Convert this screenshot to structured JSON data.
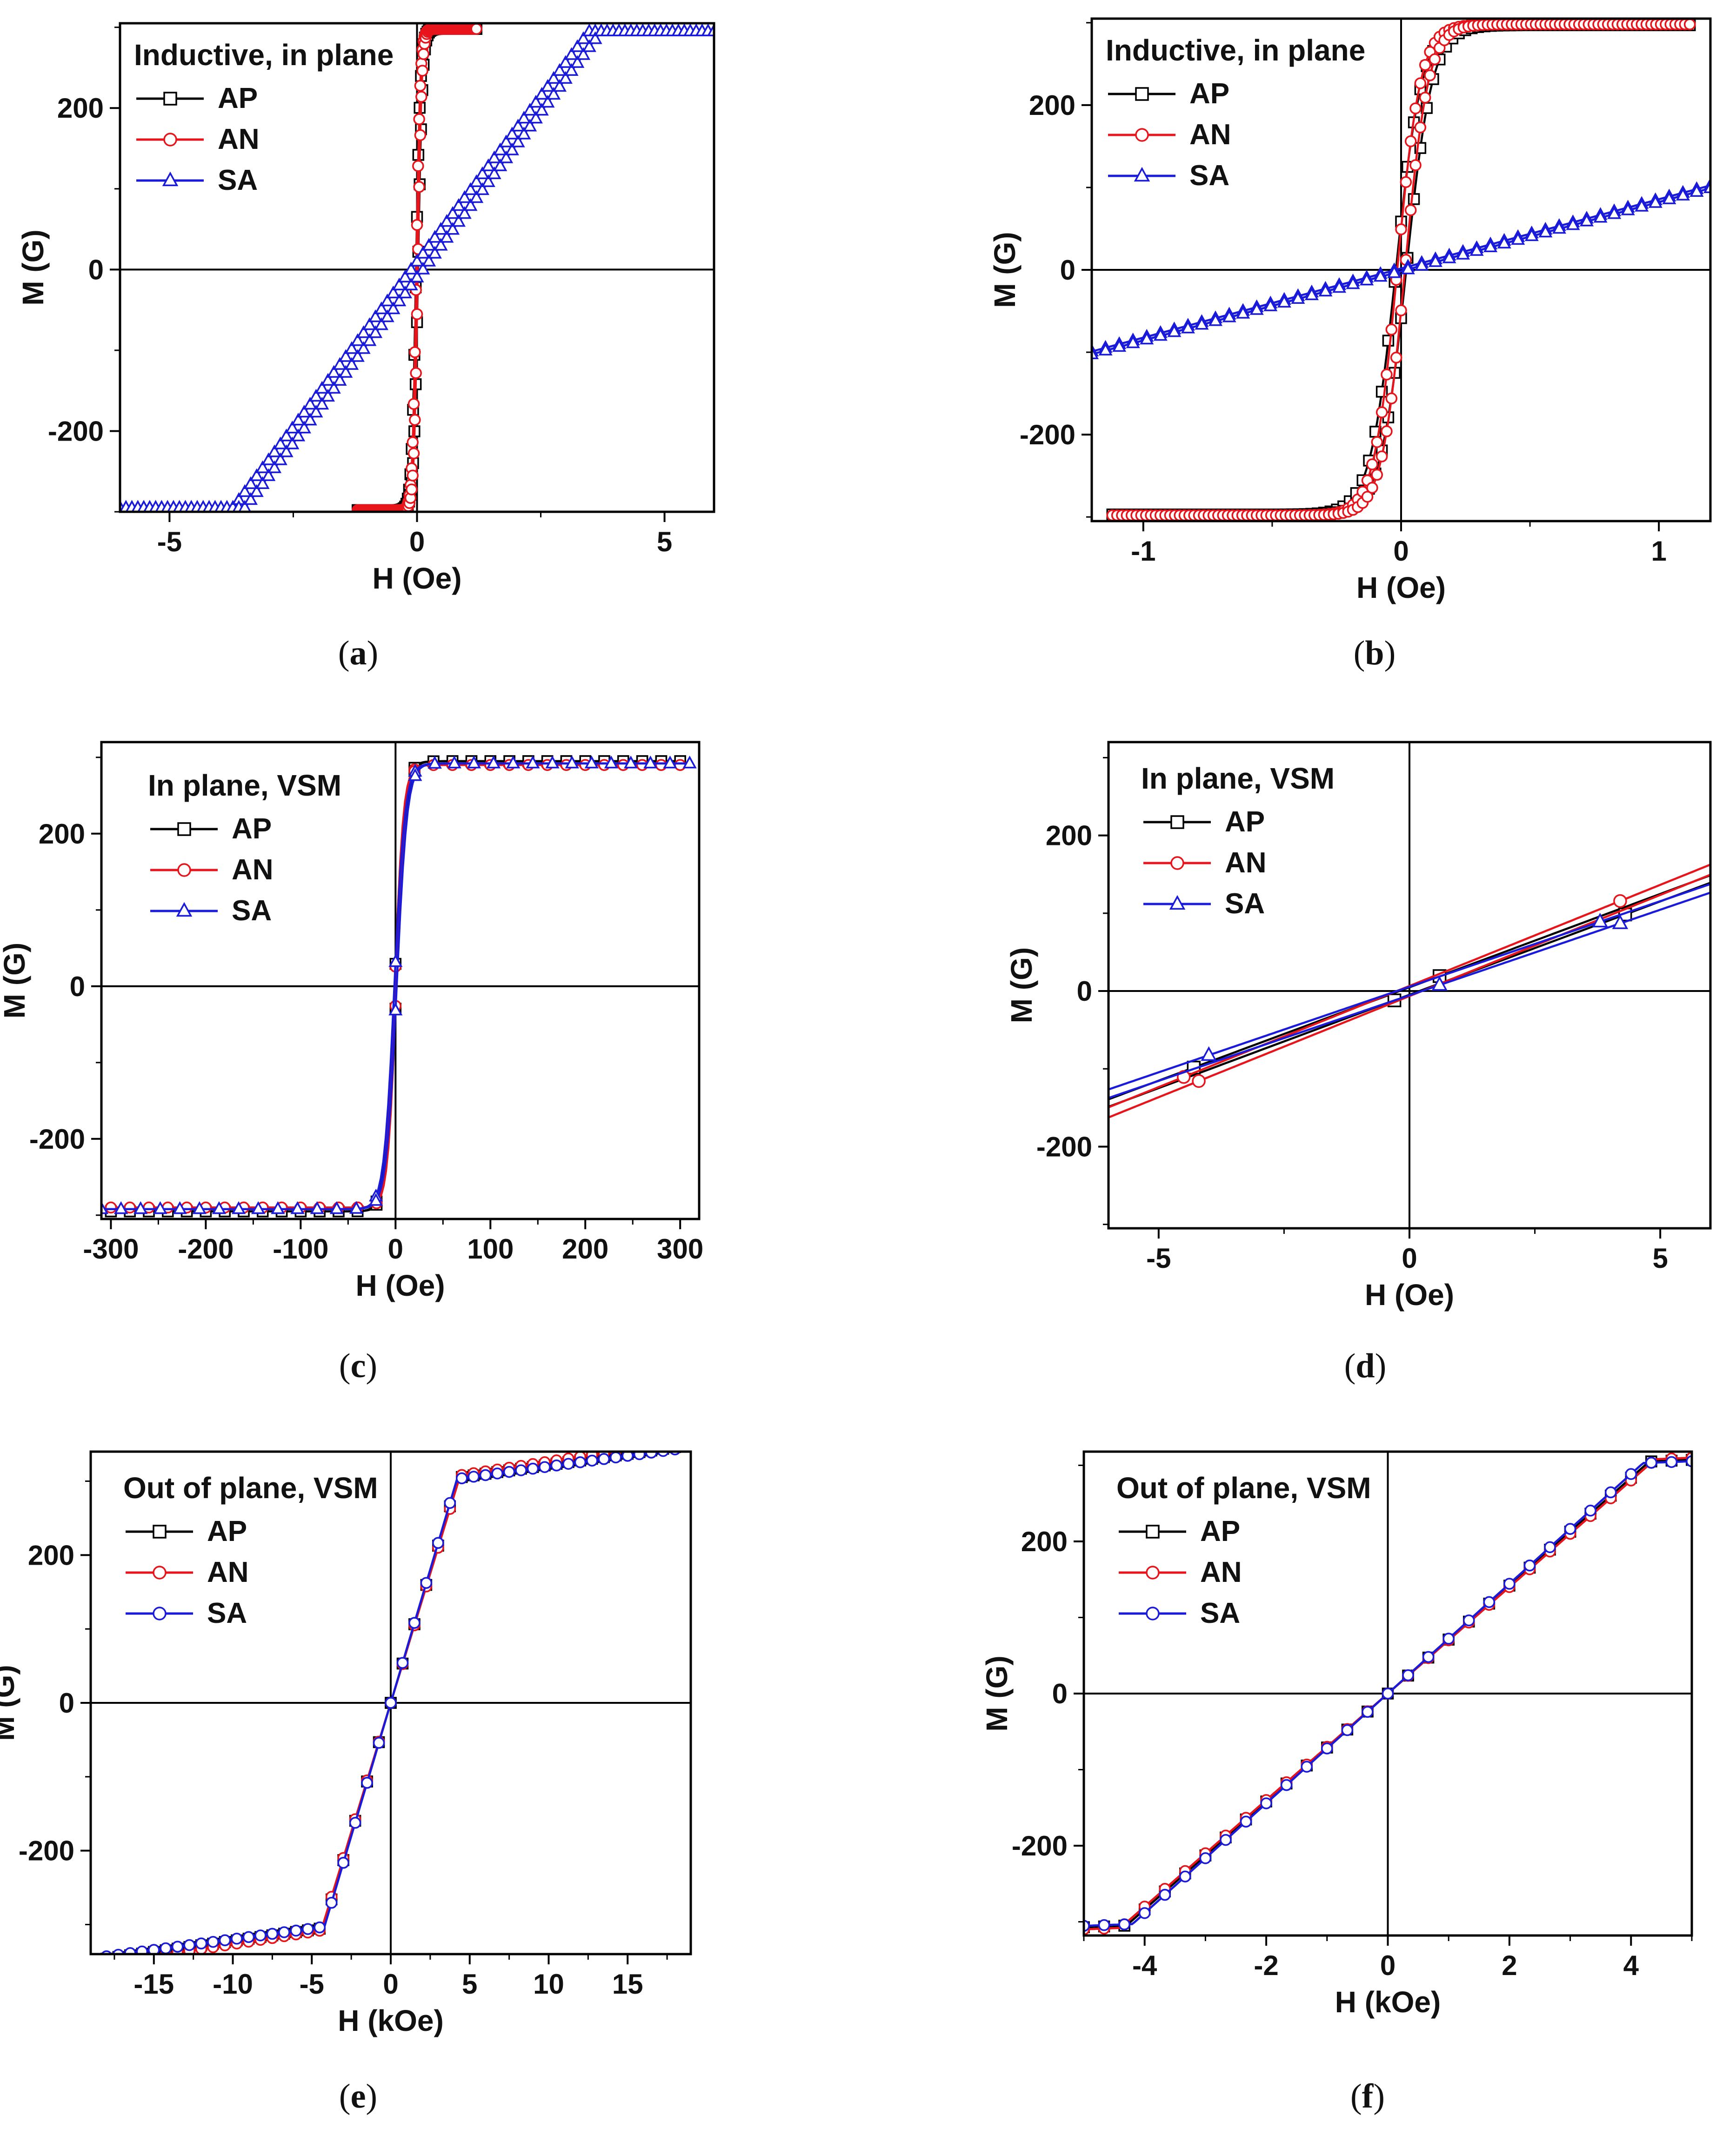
{
  "figure": {
    "colors": {
      "AP": "#000000",
      "AN": "#e8141b",
      "SA": "#1a1adb"
    },
    "icons": {
      "AP": "square-marker-icon",
      "AN": "circle-marker-icon",
      "SA": "triangle-marker-icon"
    }
  },
  "chart_data": [
    {
      "id": "a",
      "type": "line",
      "caption_label": "a",
      "title": "Inductive, in plane",
      "xlabel": "H (Oe)",
      "ylabel": "M (G)",
      "xlim": [
        -6,
        6
      ],
      "ylim": [
        -300,
        305
      ],
      "xticks": [
        -5,
        0,
        5
      ],
      "yticks": [
        -200,
        0,
        200
      ],
      "legend": [
        "AP",
        "AN",
        "SA"
      ],
      "legend_position": "top-left",
      "series": [
        {
          "name": "AP",
          "marker": "square",
          "model": "tanh",
          "Ms": 298,
          "a": 0.09,
          "hc": 0.02,
          "xmax": 1.2,
          "n": 90
        },
        {
          "name": "AN",
          "marker": "circle",
          "model": "tanh",
          "Ms": 298,
          "a": 0.08,
          "hc": 0.015,
          "xmax": 1.2,
          "n": 110
        },
        {
          "name": "SA",
          "marker": "triangle",
          "model": "linear-sat",
          "Ms": 295,
          "k": 82,
          "hc": 0.12,
          "xmax": 6,
          "n": 100
        }
      ]
    },
    {
      "id": "b",
      "type": "line",
      "caption_label": "b",
      "title": "Inductive, in plane",
      "xlabel": "H (Oe)",
      "ylabel": "M (G)",
      "xlim": [
        -1.2,
        1.2
      ],
      "ylim": [
        -305,
        305
      ],
      "xticks": [
        -1,
        0,
        1
      ],
      "yticks": [
        -200,
        0,
        200
      ],
      "legend": [
        "AP",
        "AN",
        "SA"
      ],
      "legend_position": "top-left",
      "series": [
        {
          "name": "AP",
          "marker": "square",
          "model": "tanh",
          "Ms": 297,
          "a": 0.1,
          "hc": 0.02,
          "xmax": 1.12,
          "n": 90
        },
        {
          "name": "AN",
          "marker": "circle",
          "model": "tanh",
          "Ms": 298,
          "a": 0.09,
          "hc": 0.015,
          "xmax": 1.12,
          "n": 120
        },
        {
          "name": "SA",
          "marker": "triangle",
          "model": "linear",
          "k": 84,
          "hc": 0.02,
          "xmax": 1.2,
          "n": 45
        }
      ]
    },
    {
      "id": "c",
      "type": "line",
      "caption_label": "c",
      "title": "In plane, VSM",
      "xlabel": "H (Oe)",
      "ylabel": "M (G)",
      "xlim": [
        -310,
        320
      ],
      "ylim": [
        -305,
        320
      ],
      "xticks": [
        -300,
        -200,
        -100,
        0,
        100,
        200,
        300
      ],
      "yticks": [
        -200,
        0,
        200
      ],
      "legend": [
        "AP",
        "AN",
        "SA"
      ],
      "legend_position": "top-left",
      "series": [
        {
          "name": "AP",
          "marker": "square",
          "model": "tanh",
          "Ms": 295,
          "a": 10,
          "hc": 1,
          "xmax": 300,
          "n": 30
        },
        {
          "name": "AN",
          "marker": "circle",
          "model": "tanh",
          "Ms": 290,
          "a": 9,
          "hc": 0.8,
          "xmax": 300,
          "n": 30
        },
        {
          "name": "SA",
          "marker": "triangle",
          "model": "tanh",
          "Ms": 292,
          "a": 11,
          "hc": 1.2,
          "xmax": 310,
          "n": 30
        }
      ]
    },
    {
      "id": "d",
      "type": "line",
      "caption_label": "d",
      "title": "In plane, VSM",
      "xlabel": "H (Oe)",
      "ylabel": "M (G)",
      "xlim": [
        -6,
        6
      ],
      "ylim": [
        -305,
        320
      ],
      "xticks": [
        -5,
        0,
        5
      ],
      "yticks": [
        -200,
        0,
        200
      ],
      "legend": [
        "AP",
        "AN",
        "SA"
      ],
      "legend_position": "top-left",
      "series": [
        {
          "name": "AP",
          "marker": "square",
          "model": "linear",
          "k": 24,
          "hc": 0.2,
          "xmax": 6,
          "markers_at": [
            -4.3,
            -0.3,
            0.6,
            4.3
          ]
        },
        {
          "name": "AN",
          "marker": "circle",
          "model": "linear",
          "k": 26,
          "hc": 0.25,
          "xmax": 6,
          "markers_at": [
            -4.5,
            -4.2,
            4.2
          ]
        },
        {
          "name": "SA",
          "marker": "triangle",
          "model": "linear",
          "k": 22,
          "hc": 0.25,
          "xmax": 6,
          "markers_at": [
            -4.0,
            0.6,
            3.8,
            4.2
          ]
        }
      ]
    },
    {
      "id": "e",
      "type": "line",
      "caption_label": "e",
      "title": "Out of plane, VSM",
      "xlabel": "H (kOe)",
      "ylabel": "M (G)",
      "xlim": [
        -19,
        19
      ],
      "ylim": [
        -340,
        340
      ],
      "xticks": [
        -15,
        -10,
        -5,
        0,
        5,
        10,
        15
      ],
      "yticks": [
        -200,
        0,
        200
      ],
      "legend": [
        "AP",
        "AN",
        "SA"
      ],
      "legend_position": "top-left",
      "series": [
        {
          "name": "AP",
          "marker": "square",
          "model": "knee",
          "Ms": 305,
          "hs": 4.3,
          "slope": 3,
          "xmax": 18,
          "n": 48
        },
        {
          "name": "AN",
          "marker": "circle",
          "model": "knee",
          "Ms": 308,
          "hs": 4.4,
          "slope": 3.3,
          "xmax": 18,
          "n": 48
        },
        {
          "name": "SA",
          "marker": "circle",
          "model": "knee",
          "Ms": 303,
          "hs": 4.2,
          "slope": 2.9,
          "xmax": 18,
          "n": 48
        }
      ]
    },
    {
      "id": "f",
      "type": "line",
      "caption_label": "f",
      "title": "Out of plane, VSM",
      "xlabel": "H (kOe)",
      "ylabel": "M (G)",
      "xlim": [
        -5,
        5
      ],
      "ylim": [
        -318,
        318
      ],
      "xticks": [
        -4,
        -2,
        0,
        2,
        4
      ],
      "yticks": [
        -200,
        0,
        200
      ],
      "legend": [
        "AP",
        "AN",
        "SA"
      ],
      "legend_position": "top-left",
      "series": [
        {
          "name": "AP",
          "marker": "square",
          "model": "knee",
          "Ms": 305,
          "hs": 4.3,
          "slope": 3,
          "xmax": 5,
          "n": 30
        },
        {
          "name": "AN",
          "marker": "circle",
          "model": "knee",
          "Ms": 308,
          "hs": 4.4,
          "slope": 3.3,
          "xmax": 5,
          "n": 30
        },
        {
          "name": "SA",
          "marker": "circle",
          "model": "knee",
          "Ms": 303,
          "hs": 4.2,
          "slope": 2.9,
          "xmax": 5,
          "n": 30
        }
      ]
    }
  ]
}
